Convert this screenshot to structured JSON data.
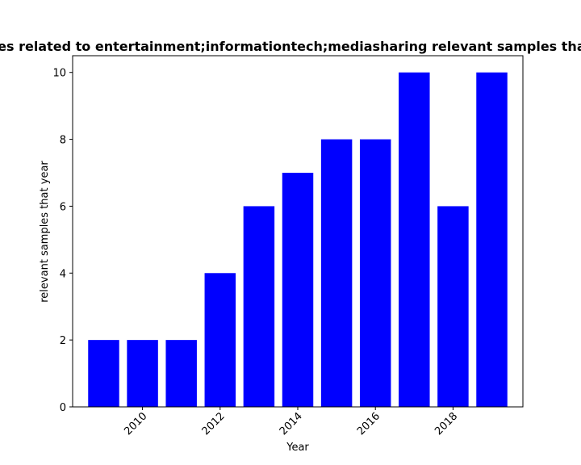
{
  "chart_data": {
    "type": "bar",
    "title": "Samples related to entertainment;informationtech;mediasharing relevant samples that year",
    "xlabel": "Year",
    "ylabel": "relevant samples that year",
    "x": [
      2009,
      2010,
      2011,
      2012,
      2013,
      2014,
      2015,
      2016,
      2017,
      2018,
      2019
    ],
    "values": [
      2,
      2,
      2,
      4,
      6,
      7,
      8,
      8,
      10,
      6,
      10
    ],
    "bar_color": "#0000ff",
    "xlim": [
      2008.2,
      2019.8
    ],
    "ylim": [
      0,
      10.5
    ],
    "xticks": [
      2010,
      2012,
      2014,
      2016,
      2018
    ],
    "yticks": [
      0,
      2,
      4,
      6,
      8,
      10
    ],
    "xtick_rotation": 45,
    "grid": false,
    "legend": "none"
  }
}
